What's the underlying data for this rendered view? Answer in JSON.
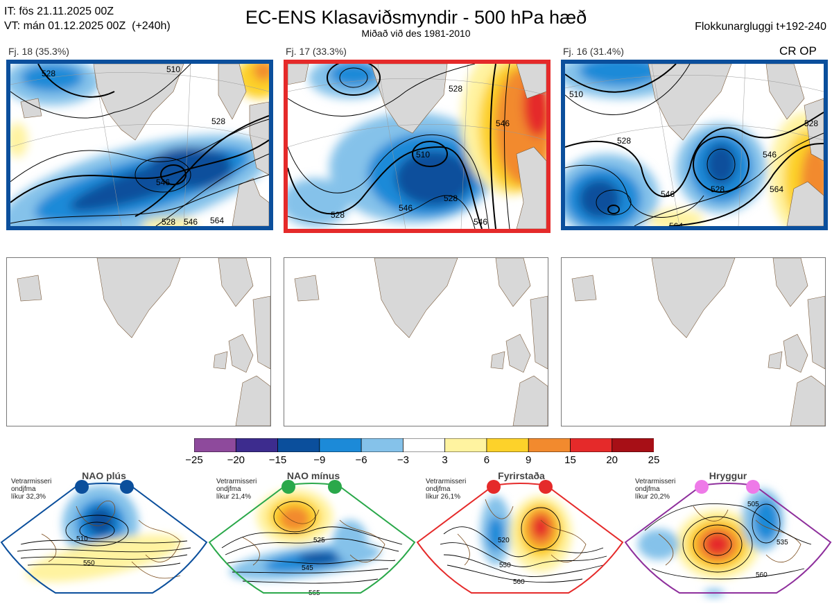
{
  "header": {
    "it_line": "IT: fös 21.11.2025 00Z",
    "vt_line": "VT: mán 01.12.2025 00Z  (+240h)",
    "title": "EC-ENS Klasaviðsmyndir - 500 hPa hæð",
    "subtitle": "Miðað við des 1981-2010",
    "window": "Flokkunargluggi t+192-240"
  },
  "panels": [
    {
      "label": "Fj. 18 (35.3%)",
      "border_color": "#0b4f9c",
      "contours": [
        "528",
        "510",
        "528",
        "546",
        "528",
        "546",
        "564"
      ]
    },
    {
      "label": "Fj. 17 (33.3%)",
      "border_color": "#e52a2a",
      "contours": [
        "528",
        "510",
        "546",
        "528",
        "528",
        "546",
        "546"
      ]
    },
    {
      "label": "Fj. 16 (31.4%)",
      "border_color": "#0b4f9c",
      "contours": [
        "510",
        "528",
        "528",
        "546",
        "528",
        "546",
        "564",
        "564"
      ]
    }
  ],
  "cr_op": "CR OP",
  "colorbar": {
    "ticks": [
      "−25",
      "−20",
      "−15",
      "−9",
      "−6",
      "−3",
      "3",
      "6",
      "9",
      "15",
      "20",
      "25"
    ],
    "colors": [
      "#8e4a9c",
      "#3d2c8e",
      "#0b4f9c",
      "#1c8ad8",
      "#85c2ea",
      "#ffffff",
      "#fff3a0",
      "#fdd22a",
      "#f28a2e",
      "#e52a2a",
      "#a70f16"
    ]
  },
  "regimes": [
    {
      "title": "NAO plús",
      "side": [
        "Vetrarmisseri",
        "ondjfma",
        "líkur 32,3%"
      ],
      "frame_color": "#0b4f9c",
      "dot_color": "#0b4f9c",
      "labels": [
        "510",
        "550"
      ]
    },
    {
      "title": "NAO mínus",
      "side": [
        "Vetrarmisseri",
        "ondjfma",
        "líkur 21,4%"
      ],
      "frame_color": "#2aa84a",
      "dot_color": "#2aa84a",
      "labels": [
        "525",
        "545",
        "565"
      ]
    },
    {
      "title": "Fyrirstaða",
      "side": [
        "Vetrarmisseri",
        "ondjfma",
        "líkur 26,1%"
      ],
      "frame_color": "#e52a2a",
      "dot_color": "#e52a2a",
      "labels": [
        "520",
        "550",
        "560"
      ]
    },
    {
      "title": "Hryggur",
      "side": [
        "Vetrarmisseri",
        "ondjfma",
        "líkur 20,2%"
      ],
      "frame_color": "#8e2f9c",
      "dot_color": "#ee7ae8",
      "labels": [
        "505",
        "535",
        "560"
      ]
    }
  ]
}
